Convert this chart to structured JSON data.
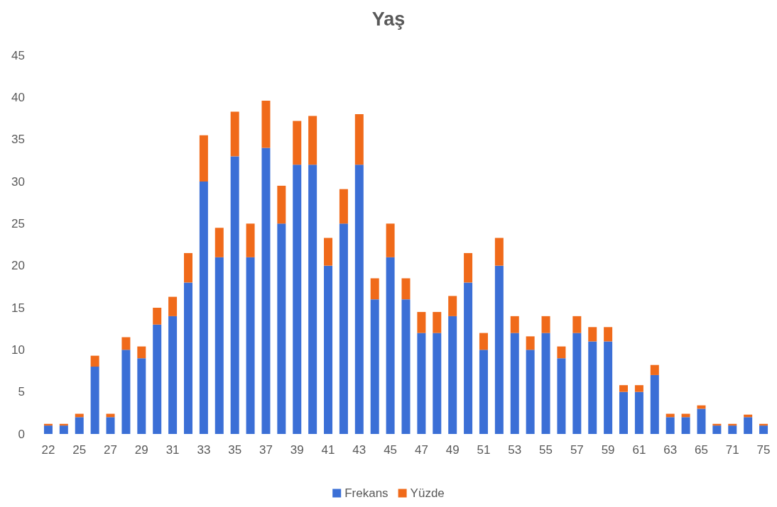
{
  "chart_data": {
    "type": "bar",
    "title": "Yaş",
    "categories": [
      "22",
      null,
      "25",
      null,
      "27",
      null,
      "29",
      null,
      "31",
      null,
      "33",
      null,
      "35",
      null,
      "37",
      null,
      "39",
      null,
      "41",
      null,
      "43",
      null,
      "45",
      null,
      "47",
      null,
      "49",
      null,
      "51",
      null,
      "53",
      null,
      "55",
      null,
      "57",
      null,
      "59",
      null,
      "61",
      null,
      "63",
      null,
      "65",
      null,
      "71",
      null,
      "75"
    ],
    "series": [
      {
        "name": "Frekans",
        "color": "#3b6fd6",
        "values": [
          1,
          1,
          2,
          8,
          2,
          10,
          9,
          13,
          14,
          18,
          30,
          21,
          33,
          21,
          34,
          25,
          32,
          32,
          20,
          25,
          32,
          16,
          21,
          16,
          12,
          12,
          14,
          18,
          10,
          20,
          12,
          10,
          12,
          9,
          12,
          11,
          11,
          5,
          5,
          7,
          2,
          2,
          3,
          1,
          1,
          2,
          1
        ]
      },
      {
        "name": "Yüzde",
        "color": "#f06a1a",
        "values": [
          0.2,
          0.2,
          0.4,
          1.3,
          0.4,
          1.5,
          1.4,
          2,
          2.3,
          3.5,
          5.5,
          3.5,
          5.3,
          4,
          5.6,
          4.5,
          5.2,
          5.8,
          3.3,
          4.1,
          6,
          2.5,
          4,
          2.5,
          2.5,
          2.5,
          2.4,
          3.5,
          2,
          3.3,
          2,
          1.6,
          2,
          1.4,
          2,
          1.7,
          1.7,
          0.8,
          0.8,
          1.2,
          0.4,
          0.4,
          0.4,
          0.2,
          0.2,
          0.3,
          0.2
        ]
      }
    ],
    "stacked": true,
    "ylim": [
      0,
      45
    ],
    "yticks": [
      0,
      5,
      10,
      15,
      20,
      25,
      30,
      35,
      40,
      45
    ],
    "grid": false,
    "legend": "bottom"
  }
}
